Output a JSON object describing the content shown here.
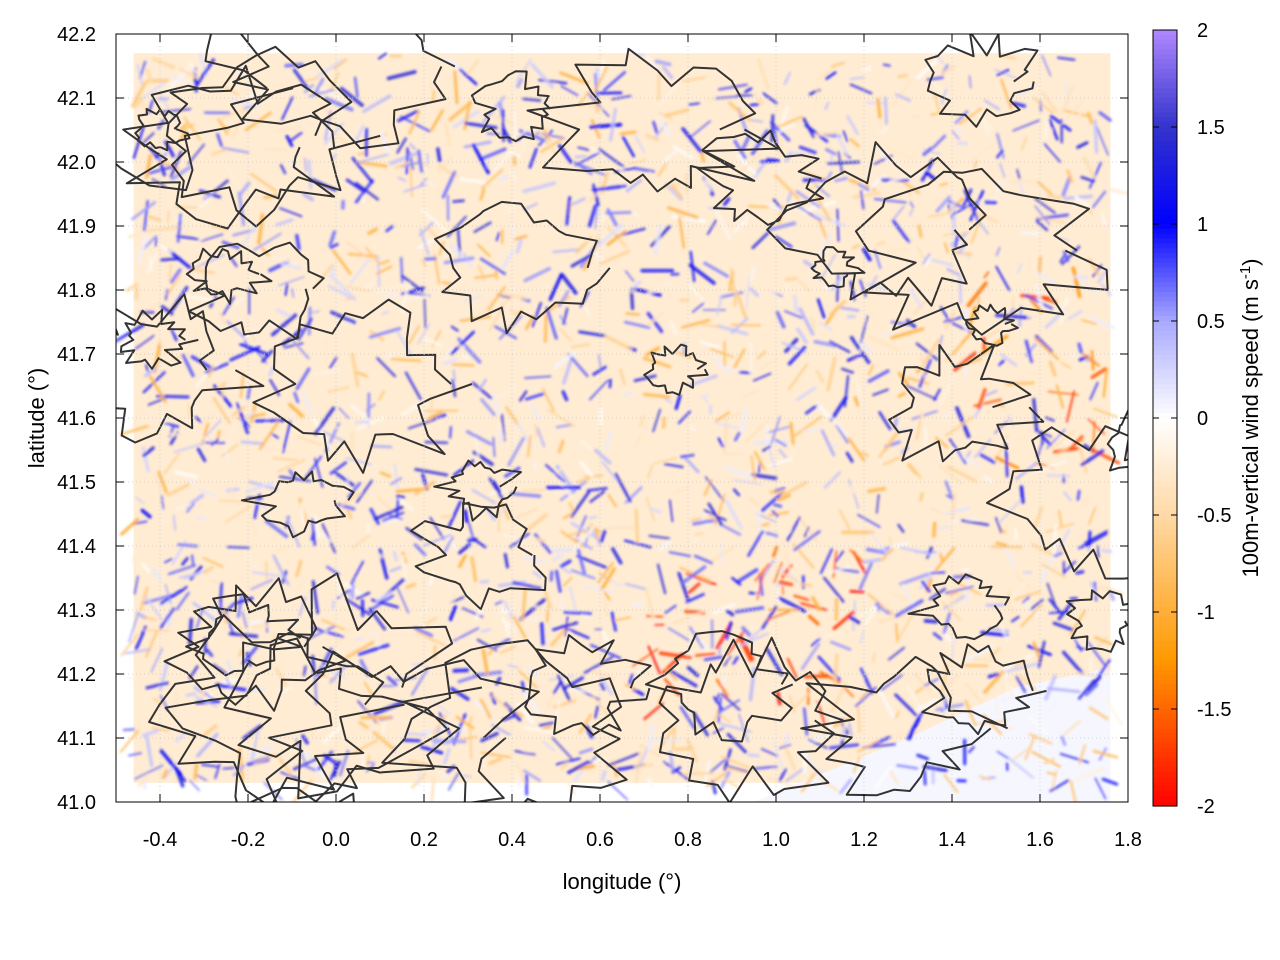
{
  "chart_data": {
    "type": "heatmap",
    "title": "",
    "xlabel": "longitude (°)",
    "ylabel": "latitude (°)",
    "colorbar_label": "100m-vertical wind speed (m s⁻¹)",
    "colorbar_label_main": "100m-vertical wind speed (m s",
    "colorbar_label_sup": "-1",
    "colorbar_label_close": ")",
    "xlim": [
      -0.5,
      1.8
    ],
    "ylim": [
      41.0,
      42.2
    ],
    "clim": [
      -2,
      2
    ],
    "x_ticks": [
      "-0.4",
      "-0.2",
      "0.0",
      "0.2",
      "0.4",
      "0.6",
      "0.8",
      "1.0",
      "1.2",
      "1.4",
      "1.6",
      "1.8"
    ],
    "x_tick_values": [
      -0.4,
      -0.2,
      0.0,
      0.2,
      0.4,
      0.6,
      0.8,
      1.0,
      1.2,
      1.4,
      1.6,
      1.8
    ],
    "y_ticks": [
      "41.0",
      "41.1",
      "41.2",
      "41.3",
      "41.4",
      "41.5",
      "41.6",
      "41.7",
      "41.8",
      "41.9",
      "42.0",
      "42.1",
      "42.2"
    ],
    "y_tick_values": [
      41.0,
      41.1,
      41.2,
      41.3,
      41.4,
      41.5,
      41.6,
      41.7,
      41.8,
      41.9,
      42.0,
      42.1,
      42.2
    ],
    "colorbar_ticks": [
      "2",
      "1.5",
      "1",
      "0.5",
      "0",
      "-0.5",
      "-1",
      "-1.5",
      "-2"
    ],
    "colorbar_tick_values": [
      2,
      1.5,
      1,
      0.5,
      0,
      -0.5,
      -1,
      -1.5,
      -2
    ],
    "colorscale": [
      {
        "v": -2.0,
        "color": "#ff0000"
      },
      {
        "v": -1.25,
        "color": "#ff9900"
      },
      {
        "v": -0.5,
        "color": "#ffd9a6"
      },
      {
        "v": 0.0,
        "color": "#ffffff"
      },
      {
        "v": 0.5,
        "color": "#a8a8ff"
      },
      {
        "v": 1.0,
        "color": "#0000ff"
      },
      {
        "v": 1.5,
        "color": "#3333cc"
      },
      {
        "v": 2.0,
        "color": "#b088ff"
      }
    ],
    "domain_lon": [
      -0.46,
      1.76
    ],
    "domain_lat": [
      41.03,
      42.17
    ],
    "open_sea_boundary": [
      [
        0.95,
        41.0
      ],
      [
        1.3,
        41.1
      ],
      [
        1.55,
        41.18
      ],
      [
        1.76,
        41.21
      ]
    ],
    "contour_color": "#333333",
    "grid": true,
    "grid_style": "dotted"
  }
}
